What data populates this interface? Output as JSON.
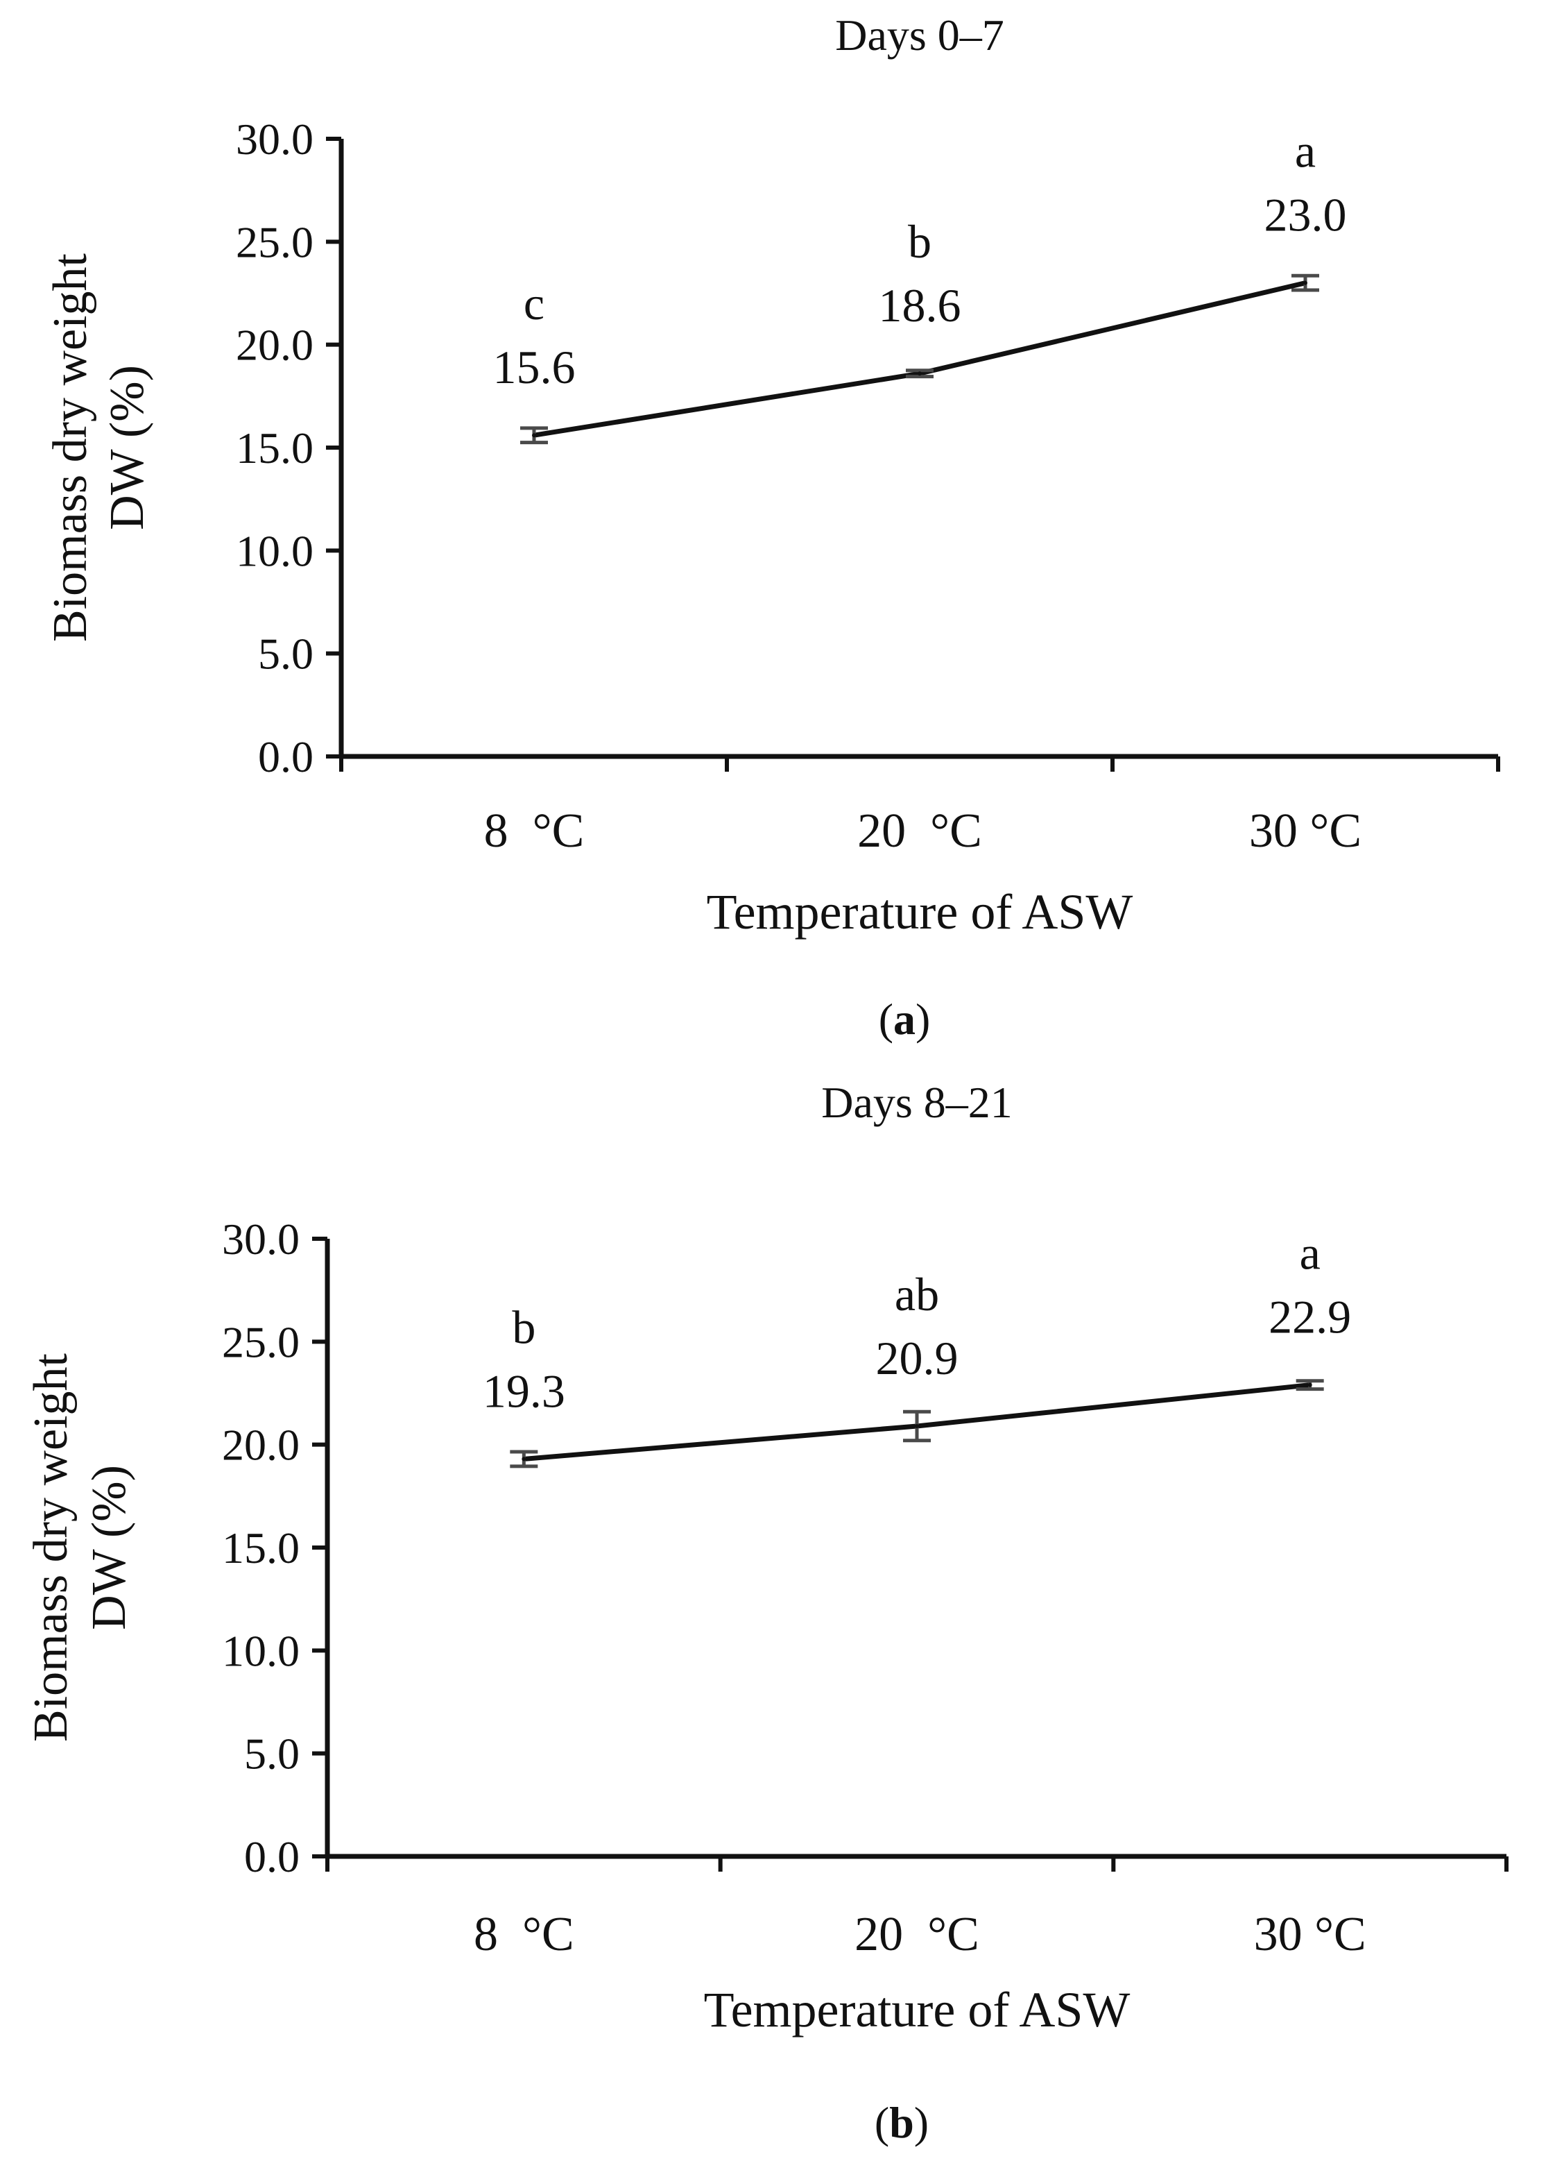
{
  "colors": {
    "line": "#111111",
    "error_bar": "#4a4a4a",
    "axis": "#111111",
    "background": "#ffffff"
  },
  "chart_data": [
    {
      "type": "line",
      "panel_label": "a",
      "title": "Days 0–7",
      "xlabel": "Temperature of ASW",
      "ylabel_line1": "Biomass dry weight",
      "ylabel_line2": "DW (%)",
      "categories": [
        "8  °C",
        "20  °C",
        "30 °C"
      ],
      "ylim": [
        0,
        30
      ],
      "yticks": [
        0,
        5,
        10,
        15,
        20,
        25,
        30
      ],
      "ytick_labels": [
        "0.0",
        "5.0",
        "10.0",
        "15.0",
        "20.0",
        "25.0",
        "30.0"
      ],
      "values": [
        15.6,
        18.6,
        23.0
      ],
      "value_labels": [
        "15.6",
        "18.6",
        "23.0"
      ],
      "errors": [
        0.35,
        0.15,
        0.35
      ],
      "significance": [
        "c",
        "b",
        "a"
      ],
      "grid": false
    },
    {
      "type": "line",
      "panel_label": "b",
      "title": "Days 8–21",
      "xlabel": "Temperature of ASW",
      "ylabel_line1": "Biomass dry weight",
      "ylabel_line2": "DW (%)",
      "categories": [
        "8  °C",
        "20  °C",
        "30 °C"
      ],
      "ylim": [
        0,
        30
      ],
      "yticks": [
        0,
        5,
        10,
        15,
        20,
        25,
        30
      ],
      "ytick_labels": [
        "0.0",
        "5.0",
        "10.0",
        "15.0",
        "20.0",
        "25.0",
        "30.0"
      ],
      "values": [
        19.3,
        20.9,
        22.9
      ],
      "value_labels": [
        "19.3",
        "20.9",
        "22.9"
      ],
      "errors": [
        0.35,
        0.7,
        0.2
      ],
      "significance": [
        "b",
        "ab",
        "a"
      ],
      "grid": false
    }
  ]
}
